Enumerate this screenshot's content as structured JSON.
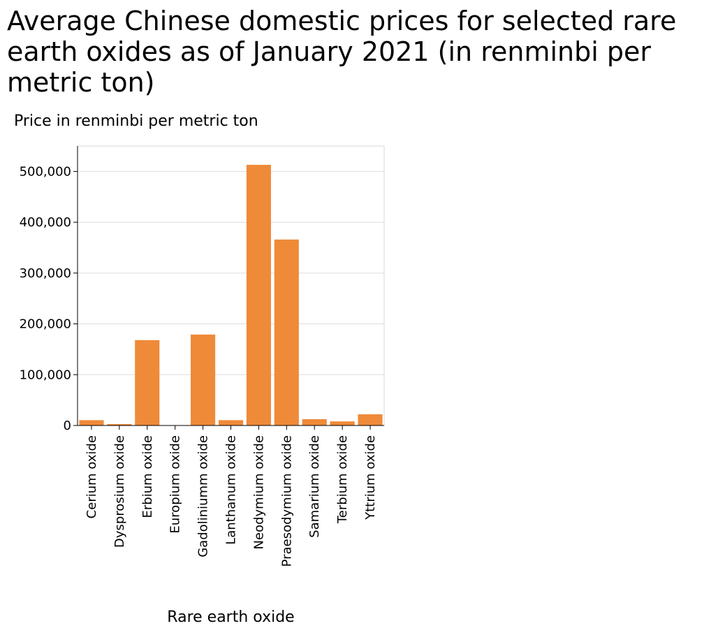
{
  "chart_data": {
    "type": "bar",
    "title": "Average Chinese domestic prices for selected rare earth oxides as of January 2021 (in renminbi per metric ton)",
    "xlabel": "Rare earth oxide",
    "ylabel": "Price in renminbi per metric ton",
    "categories": [
      "Cerium oxide",
      "Dysprosium oxide",
      "Erbium oxide",
      "Europium oxide",
      "Gadoliniumm oxide",
      "Lanthanum oxide",
      "Neodymium oxide",
      "Praesodymium oxide",
      "Samarium oxide",
      "Terbium oxide",
      "Yttrium oxide"
    ],
    "values": [
      10500,
      2800,
      168000,
      300,
      179000,
      10500,
      513000,
      366000,
      12500,
      8000,
      22000
    ],
    "ylim": [
      0,
      550000
    ],
    "yticks": [
      0,
      100000,
      200000,
      300000,
      400000,
      500000
    ],
    "ytick_labels": [
      "0",
      "100,000",
      "200,000",
      "300,000",
      "400,000",
      "500,000"
    ],
    "grid": true,
    "bar_color": "#ef8a38",
    "legend": "none"
  }
}
